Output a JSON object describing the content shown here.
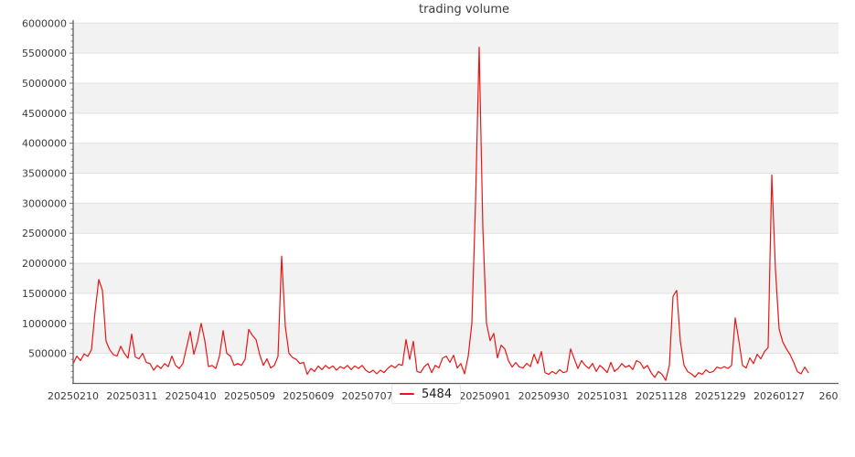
{
  "title": "trading volume",
  "legend": {
    "label": "5484"
  },
  "colors": {
    "line": "#ed1414",
    "band": "#f2f2f2",
    "grid": "#e0e0e0",
    "spine": "#606060",
    "tick": "#757575",
    "tick_label": "#3c3c3c",
    "title": "#3c3c3c",
    "background": "#ffffff"
  },
  "chart_data": {
    "type": "line",
    "title": "trading volume",
    "xlabel": "",
    "ylabel": "",
    "ylim": [
      0,
      6050000
    ],
    "y_tick_step": 500000,
    "y_minor_step": 100000,
    "y_tick_labels": [
      "500000",
      "1000000",
      "1500000",
      "2000000",
      "2500000",
      "3000000",
      "3500000",
      "4000000",
      "4500000",
      "5000000",
      "5500000",
      "6000000"
    ],
    "x_tick_labels": [
      "20250210",
      "20250311",
      "20250410",
      "20250509",
      "20250609",
      "20250707",
      "",
      "20250901",
      "20250930",
      "20251031",
      "20251128",
      "20251229",
      "20260127",
      "260"
    ],
    "grid": "horizontal gridlines with alternating gray bands",
    "legend_position": "bottom center",
    "series": [
      {
        "name": "5484",
        "color": "#ed1414",
        "values": [
          330000,
          455000,
          380000,
          490000,
          450000,
          560000,
          1200000,
          1730000,
          1550000,
          700000,
          560000,
          480000,
          455000,
          620000,
          500000,
          420000,
          820000,
          440000,
          410000,
          500000,
          350000,
          330000,
          220000,
          300000,
          250000,
          330000,
          280000,
          455000,
          300000,
          250000,
          330000,
          600000,
          865000,
          485000,
          700000,
          1000000,
          710000,
          280000,
          300000,
          250000,
          455000,
          880000,
          500000,
          455000,
          300000,
          330000,
          300000,
          400000,
          900000,
          800000,
          730000,
          480000,
          300000,
          410000,
          257000,
          300000,
          450000,
          2120000,
          950000,
          500000,
          430000,
          400000,
          330000,
          350000,
          150000,
          250000,
          200000,
          290000,
          230000,
          300000,
          250000,
          290000,
          220000,
          280000,
          250000,
          300000,
          230000,
          290000,
          250000,
          300000,
          220000,
          180000,
          220000,
          160000,
          220000,
          180000,
          250000,
          300000,
          260000,
          320000,
          300000,
          730000,
          400000,
          700000,
          200000,
          180000,
          280000,
          330000,
          180000,
          300000,
          260000,
          420000,
          455000,
          350000,
          470000,
          257000,
          330000,
          160000,
          450000,
          1000000,
          3000000,
          5600000,
          2600000,
          1000000,
          712000,
          833000,
          424000,
          636000,
          576000,
          379000,
          273000,
          348000,
          273000,
          258000,
          333000,
          280000,
          485000,
          330000,
          530000,
          180000,
          150000,
          200000,
          160000,
          230000,
          180000,
          200000,
          576000,
          409000,
          250000,
          380000,
          300000,
          250000,
          333000,
          200000,
          300000,
          250000,
          180000,
          350000,
          200000,
          250000,
          330000,
          270000,
          300000,
          230000,
          379000,
          350000,
          250000,
          300000,
          180000,
          100000,
          200000,
          150000,
          50000,
          300000,
          1450000,
          1550000,
          700000,
          303000,
          197000,
          160000,
          106000,
          180000,
          150000,
          227000,
          180000,
          200000,
          273000,
          250000,
          280000,
          250000,
          300000,
          1090000,
          712000,
          300000,
          257000,
          424000,
          330000,
          485000,
          409000,
          530000,
          600000,
          3470000,
          1900000,
          909000,
          690000,
          576000,
          480000,
          350000,
          197000,
          160000,
          273000,
          180000
        ]
      }
    ]
  }
}
